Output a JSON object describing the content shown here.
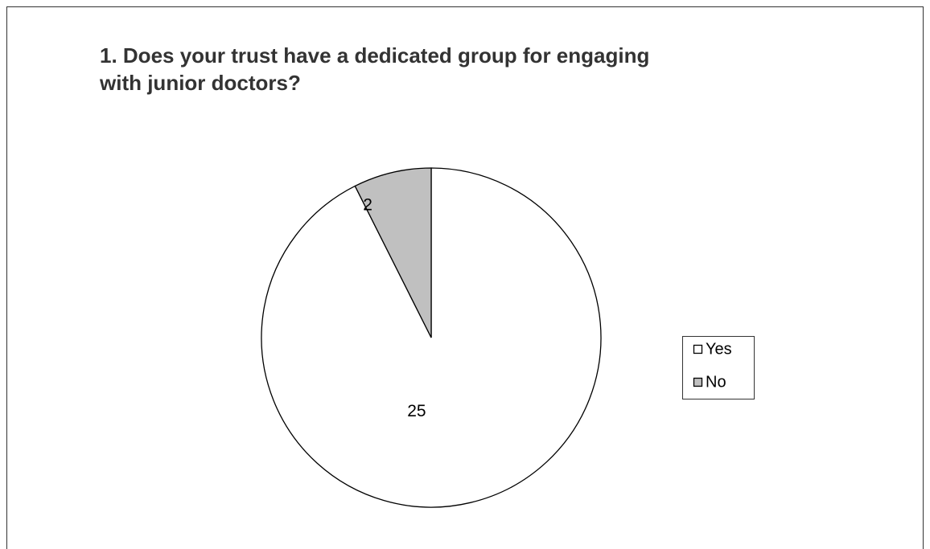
{
  "chart_data": {
    "type": "pie",
    "title": "1. Does your trust have a dedicated group for engaging with junior doctors?",
    "categories": [
      "Yes",
      "No"
    ],
    "values": [
      25,
      2
    ],
    "colors": [
      "#ffffff",
      "#c0c0c0"
    ],
    "legend": "right"
  }
}
